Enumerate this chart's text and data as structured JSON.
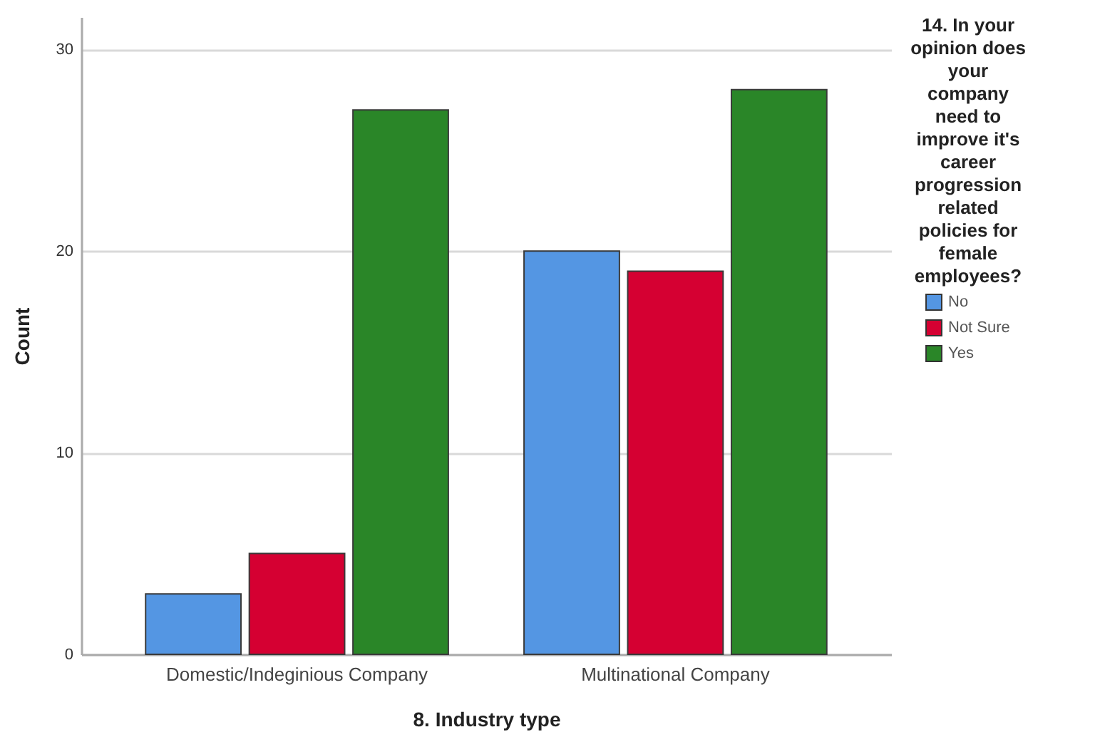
{
  "chart_data": {
    "type": "bar",
    "xlabel": "8. Industry type",
    "ylabel": "Count",
    "legend_title": "14. In your opinion does your company need to improve it's career progression related policies for female employees?",
    "categories": [
      "Domestic/Indeginious Company",
      "Multinational Company"
    ],
    "series": [
      {
        "name": "No",
        "color": "#5496e3",
        "values": [
          3,
          20
        ]
      },
      {
        "name": "Not Sure",
        "color": "#d50032",
        "values": [
          5,
          19
        ]
      },
      {
        "name": "Yes",
        "color": "#2a8628",
        "values": [
          27,
          28
        ]
      }
    ],
    "ylim": [
      0,
      31.6
    ],
    "yticks": [
      0,
      10,
      20,
      30
    ],
    "grid": "y",
    "legend": "right"
  }
}
